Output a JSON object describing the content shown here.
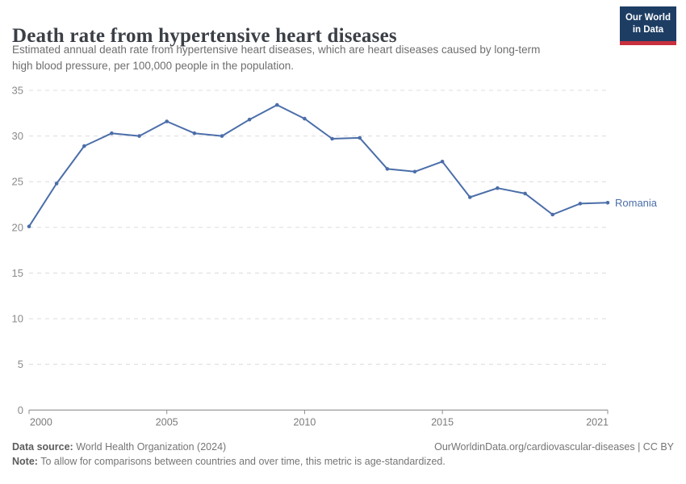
{
  "header": {
    "title": "Death rate from hypertensive heart diseases",
    "subtitle_lines": [
      "Estimated annual death rate from hypertensive heart diseases, which are heart diseases caused by long-term",
      "high blood pressure, per 100,000 people in the population."
    ],
    "logo": {
      "line1": "Our World",
      "line2": "in Data"
    }
  },
  "chart_data": {
    "type": "line",
    "title": "Death rate from hypertensive heart diseases",
    "x": [
      2000,
      2001,
      2002,
      2003,
      2004,
      2005,
      2006,
      2007,
      2008,
      2009,
      2010,
      2011,
      2012,
      2013,
      2014,
      2015,
      2016,
      2017,
      2018,
      2019,
      2020,
      2021
    ],
    "series": [
      {
        "name": "Romania",
        "color": "#4b6ea9",
        "values": [
          20.1,
          24.8,
          28.9,
          30.3,
          30.0,
          31.6,
          30.3,
          30.0,
          31.8,
          33.4,
          31.9,
          29.7,
          29.8,
          26.4,
          26.1,
          27.2,
          23.3,
          24.3,
          23.7,
          21.4,
          22.6,
          22.7
        ]
      }
    ],
    "x_ticks": [
      2000,
      2005,
      2010,
      2015,
      2021
    ],
    "y_ticks": [
      0,
      5,
      10,
      15,
      20,
      25,
      30,
      35
    ],
    "xlim": [
      2000,
      2021
    ],
    "ylim": [
      0,
      35
    ],
    "xlabel": "",
    "ylabel": "",
    "grid": "horizontal-dashed",
    "legend_position": "end-of-line",
    "end_label": "Romania"
  },
  "footer": {
    "source_label": "Data source:",
    "source_text": " World Health Organization (2024)",
    "attribution": "OurWorldinData.org/cardiovascular-diseases | CC BY",
    "note_label": "Note:",
    "note_text": " To allow for comparisons between countries and over time, this metric is age-standardized."
  },
  "colors": {
    "line": "#4b6ea9",
    "grid": "#dcdcdc",
    "axis": "#8f8f8f",
    "y_tick_label": "#8a8a8a",
    "x_tick_label": "#7a7a7a",
    "title": "#3b3f46",
    "subtitle": "#6e6e6e",
    "footer": "#757575",
    "logo_bg": "#1d3d63",
    "logo_accent": "#c9303e"
  }
}
